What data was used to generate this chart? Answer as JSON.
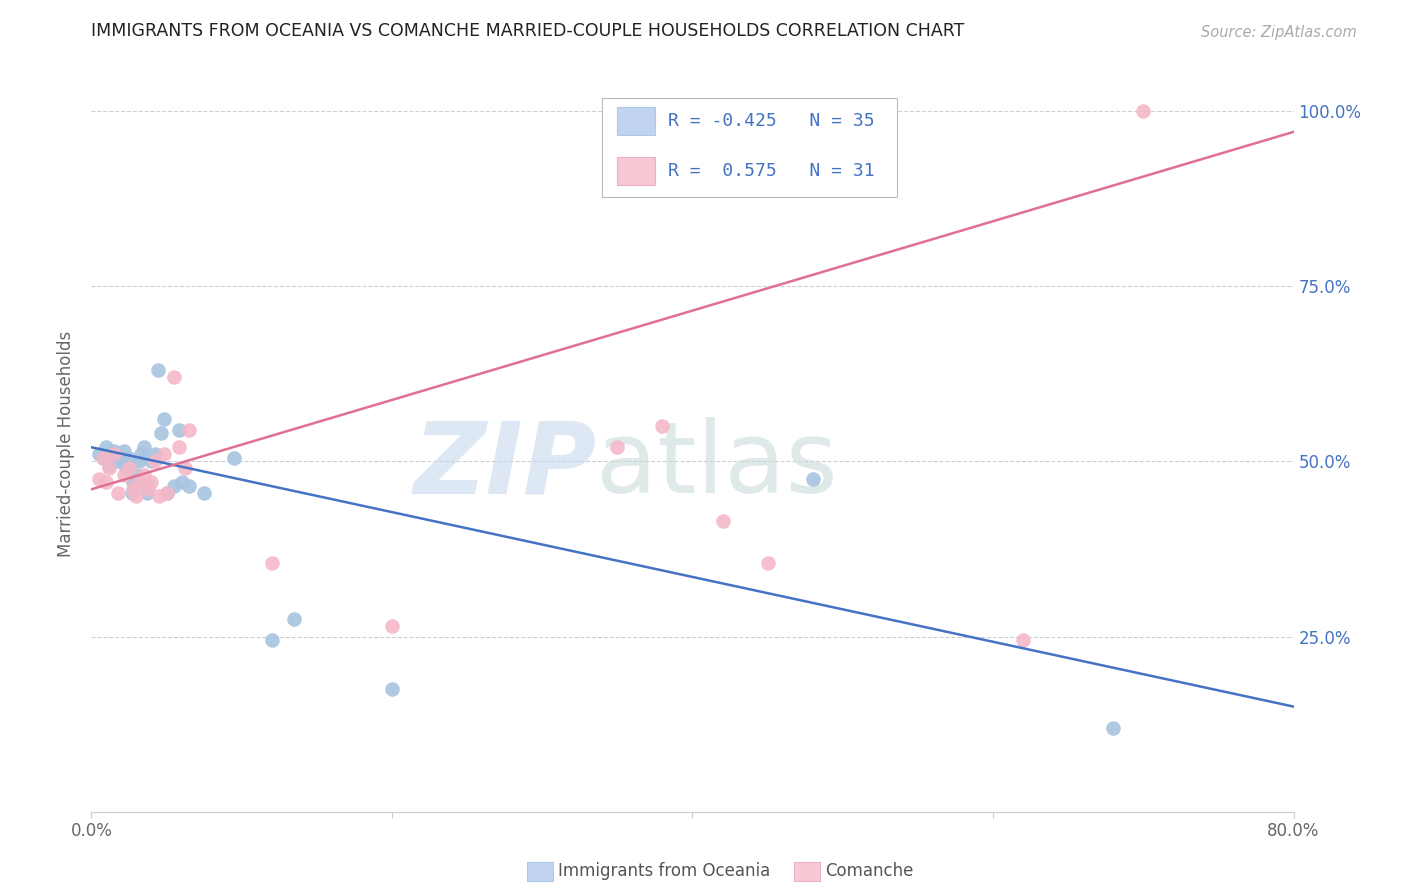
{
  "title": "IMMIGRANTS FROM OCEANIA VS COMANCHE MARRIED-COUPLE HOUSEHOLDS CORRELATION CHART",
  "source": "Source: ZipAtlas.com",
  "ylabel": "Married-couple Households",
  "legend_label_blue": "Immigrants from Oceania",
  "legend_label_pink": "Comanche",
  "xlim": [
    0.0,
    0.8
  ],
  "ylim": [
    0.0,
    1.05
  ],
  "color_blue": "#a8c4e0",
  "color_pink": "#f4b8c8",
  "line_color_blue": "#4472c4",
  "line_color_pink": "#e07090",
  "watermark_zip": "ZIP",
  "watermark_atlas": "atlas",
  "blue_scatter_x": [
    0.005,
    0.008,
    0.01,
    0.012,
    0.015,
    0.018,
    0.02,
    0.022,
    0.023,
    0.025,
    0.027,
    0.028,
    0.03,
    0.032,
    0.033,
    0.035,
    0.037,
    0.038,
    0.04,
    0.042,
    0.044,
    0.046,
    0.048,
    0.05,
    0.055,
    0.058,
    0.06,
    0.065,
    0.075,
    0.095,
    0.12,
    0.135,
    0.2,
    0.48,
    0.68
  ],
  "blue_scatter_y": [
    0.51,
    0.505,
    0.52,
    0.495,
    0.515,
    0.5,
    0.505,
    0.515,
    0.49,
    0.505,
    0.455,
    0.47,
    0.48,
    0.5,
    0.51,
    0.52,
    0.455,
    0.465,
    0.5,
    0.51,
    0.63,
    0.54,
    0.56,
    0.455,
    0.465,
    0.545,
    0.47,
    0.465,
    0.455,
    0.505,
    0.245,
    0.275,
    0.175,
    0.475,
    0.12
  ],
  "pink_scatter_x": [
    0.005,
    0.008,
    0.01,
    0.012,
    0.015,
    0.018,
    0.022,
    0.025,
    0.028,
    0.03,
    0.032,
    0.035,
    0.038,
    0.04,
    0.042,
    0.045,
    0.048,
    0.05,
    0.055,
    0.058,
    0.062,
    0.065,
    0.12,
    0.2,
    0.35,
    0.38,
    0.42,
    0.45,
    0.62,
    0.7
  ],
  "pink_scatter_y": [
    0.475,
    0.505,
    0.47,
    0.49,
    0.51,
    0.455,
    0.48,
    0.49,
    0.46,
    0.45,
    0.47,
    0.48,
    0.46,
    0.47,
    0.5,
    0.45,
    0.51,
    0.455,
    0.62,
    0.52,
    0.49,
    0.545,
    0.355,
    0.265,
    0.52,
    0.55,
    0.415,
    0.355,
    0.245,
    1.0
  ],
  "blue_line_x": [
    0.0,
    0.8
  ],
  "blue_line_y": [
    0.52,
    0.15
  ],
  "pink_line_x": [
    0.0,
    0.8
  ],
  "pink_line_y": [
    0.46,
    0.97
  ]
}
